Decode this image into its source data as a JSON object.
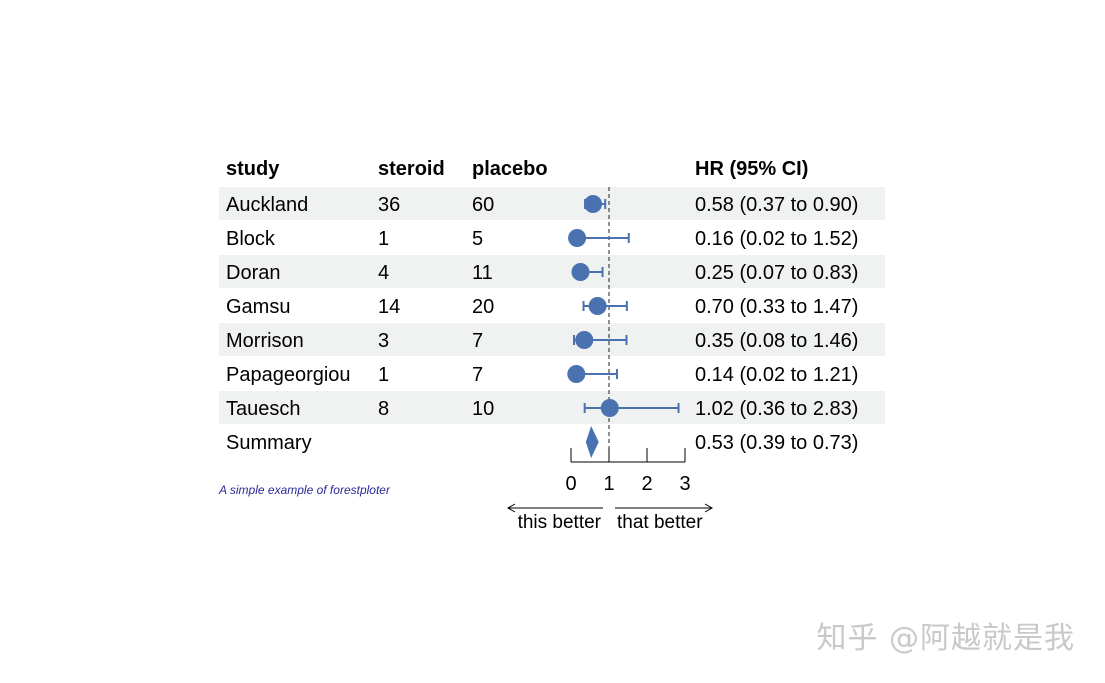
{
  "chart_data": {
    "type": "forest",
    "headers": {
      "study": "study",
      "steroid": "steroid",
      "placebo": "placebo",
      "hr": "HR (95% CI)"
    },
    "rows": [
      {
        "study": "Auckland",
        "steroid": "36",
        "placebo": "60",
        "hr": 0.58,
        "lo": 0.37,
        "hi": 0.9,
        "label": "0.58 (0.37 to 0.90)",
        "shaded": true
      },
      {
        "study": "Block",
        "steroid": "1",
        "placebo": "5",
        "hr": 0.16,
        "lo": 0.02,
        "hi": 1.52,
        "label": "0.16 (0.02 to 1.52)",
        "shaded": false
      },
      {
        "study": "Doran",
        "steroid": "4",
        "placebo": "11",
        "hr": 0.25,
        "lo": 0.07,
        "hi": 0.83,
        "label": "0.25 (0.07 to 0.83)",
        "shaded": true
      },
      {
        "study": "Gamsu",
        "steroid": "14",
        "placebo": "20",
        "hr": 0.7,
        "lo": 0.33,
        "hi": 1.47,
        "label": "0.70 (0.33 to 1.47)",
        "shaded": false
      },
      {
        "study": "Morrison",
        "steroid": "3",
        "placebo": "7",
        "hr": 0.35,
        "lo": 0.08,
        "hi": 1.46,
        "label": "0.35 (0.08 to 1.46)",
        "shaded": true
      },
      {
        "study": "Papageorgiou",
        "steroid": "1",
        "placebo": "7",
        "hr": 0.14,
        "lo": 0.02,
        "hi": 1.21,
        "label": "0.14 (0.02 to 1.21)",
        "shaded": false
      },
      {
        "study": "Tauesch",
        "steroid": "8",
        "placebo": "10",
        "hr": 1.02,
        "lo": 0.36,
        "hi": 2.83,
        "label": "1.02 (0.36 to 2.83)",
        "shaded": true
      }
    ],
    "summary": {
      "study": "Summary",
      "hr": 0.53,
      "lo": 0.39,
      "hi": 0.73,
      "label": "0.53 (0.39 to 0.73)"
    },
    "x_ticks": [
      0,
      1,
      2,
      3
    ],
    "xlim": [
      0,
      3
    ],
    "reference_line": 1,
    "left_note": "this better",
    "right_note": "that better",
    "caption": "A simple example of forestploter",
    "colors": {
      "marker": "#4a72b0",
      "shade": "#eff2f1",
      "caption": "#2a2a9a",
      "reference": "#222222"
    }
  },
  "watermark": "知乎 @阿越就是我"
}
